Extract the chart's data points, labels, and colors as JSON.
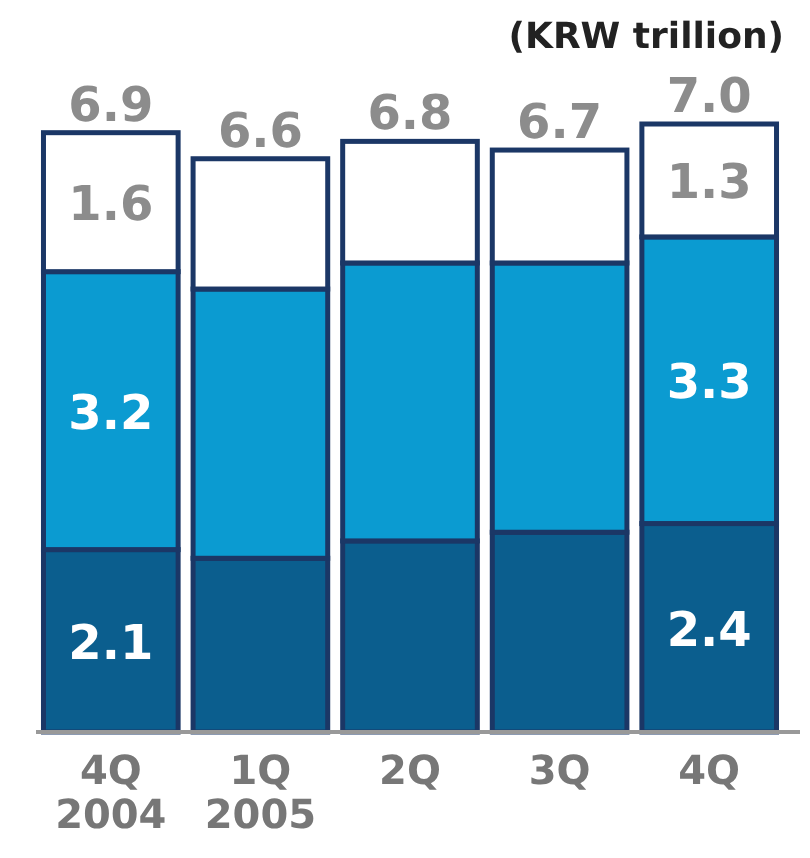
{
  "chart_data": {
    "type": "bar",
    "stacked": true,
    "categories": [
      "4Q 2004",
      "1Q 2005",
      "2Q",
      "3Q",
      "4Q"
    ],
    "series": [
      {
        "color": "#0b5e8e",
        "values": [
          2.1,
          2.0,
          2.2,
          2.3,
          2.4
        ],
        "value_labels": [
          "2.1",
          null,
          null,
          null,
          "2.4"
        ]
      },
      {
        "color": "#0b9bd1",
        "values": [
          3.2,
          3.1,
          3.2,
          3.1,
          3.3
        ],
        "value_labels": [
          "3.2",
          null,
          null,
          null,
          "3.3"
        ]
      },
      {
        "color": "#ffffff",
        "values": [
          1.6,
          1.5,
          1.4,
          1.3,
          1.3
        ],
        "value_labels": [
          "1.6",
          null,
          null,
          null,
          "1.3"
        ]
      }
    ],
    "totals": [
      "6.9",
      "6.6",
      "6.8",
      "6.7",
      "7.0"
    ],
    "annotations": [
      "(KRW trillion)"
    ]
  }
}
